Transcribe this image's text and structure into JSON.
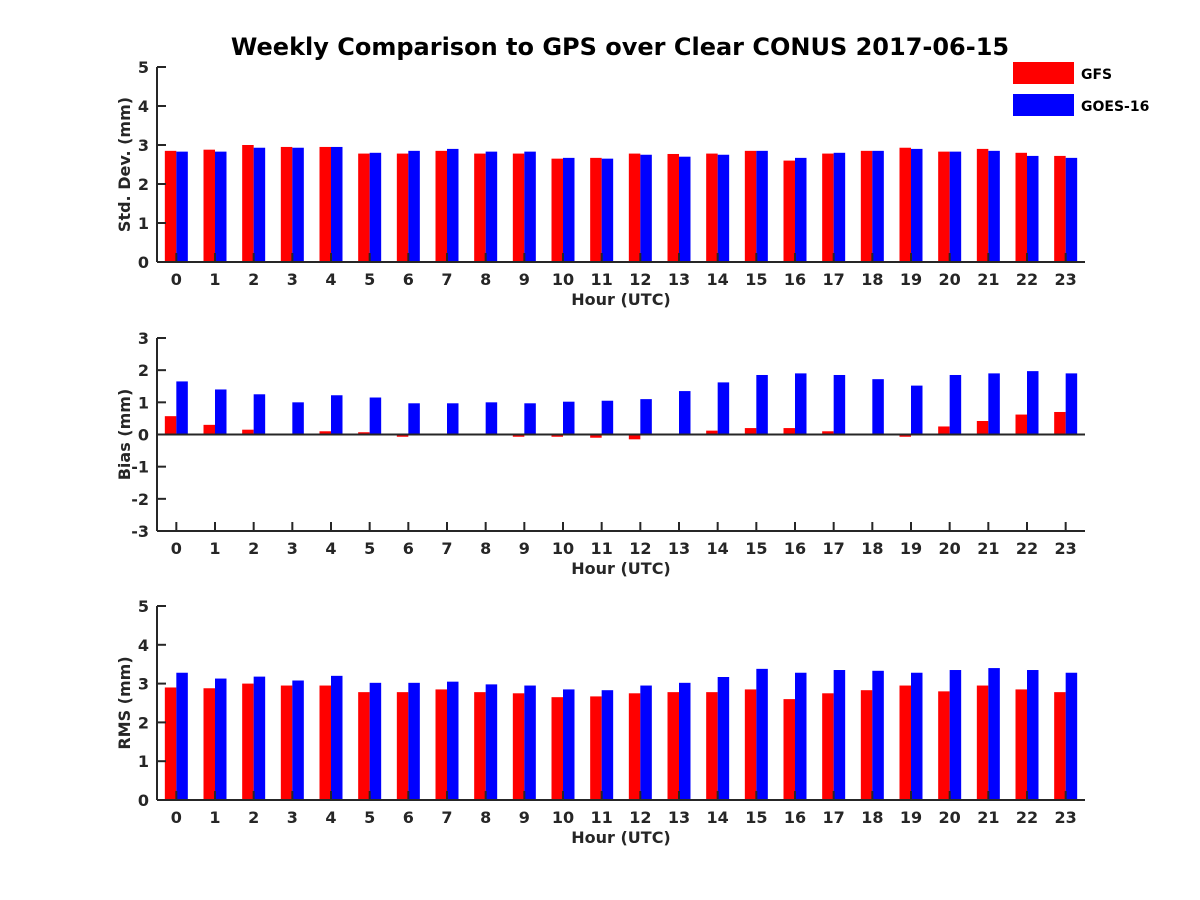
{
  "figure": {
    "title": "Weekly Comparison to GPS over Clear CONUS 2017-06-15"
  },
  "colors": {
    "GFS": "#ff0000",
    "GOES-16": "#0000ff",
    "axis": "#262626"
  },
  "legend": {
    "placement": "top-right",
    "entries": [
      "GFS",
      "GOES-16"
    ]
  },
  "chart_data": [
    {
      "type": "bar",
      "xlabel": "Hour (UTC)",
      "ylabel": "Std. Dev. (mm)",
      "ylim": [
        0,
        5
      ],
      "yticks": [
        0,
        1,
        2,
        3,
        4,
        5
      ],
      "categories": [
        "0",
        "1",
        "2",
        "3",
        "4",
        "5",
        "6",
        "7",
        "8",
        "9",
        "10",
        "11",
        "12",
        "13",
        "14",
        "15",
        "16",
        "17",
        "18",
        "19",
        "20",
        "21",
        "22",
        "23"
      ],
      "series": [
        {
          "name": "GFS",
          "values": [
            2.85,
            2.88,
            3.0,
            2.95,
            2.95,
            2.78,
            2.78,
            2.85,
            2.78,
            2.78,
            2.65,
            2.67,
            2.78,
            2.77,
            2.78,
            2.85,
            2.6,
            2.78,
            2.85,
            2.93,
            2.83,
            2.9,
            2.8,
            2.72
          ]
        },
        {
          "name": "GOES-16",
          "values": [
            2.83,
            2.83,
            2.93,
            2.93,
            2.95,
            2.8,
            2.85,
            2.9,
            2.83,
            2.83,
            2.67,
            2.65,
            2.75,
            2.7,
            2.75,
            2.85,
            2.67,
            2.8,
            2.85,
            2.9,
            2.83,
            2.85,
            2.72,
            2.67
          ]
        }
      ]
    },
    {
      "type": "bar",
      "xlabel": "Hour (UTC)",
      "ylabel": "Bias (mm)",
      "ylim": [
        -3,
        3
      ],
      "yticks": [
        -3,
        -2,
        -1,
        0,
        1,
        2,
        3
      ],
      "categories": [
        "0",
        "1",
        "2",
        "3",
        "4",
        "5",
        "6",
        "7",
        "8",
        "9",
        "10",
        "11",
        "12",
        "13",
        "14",
        "15",
        "16",
        "17",
        "18",
        "19",
        "20",
        "21",
        "22",
        "23"
      ],
      "series": [
        {
          "name": "GFS",
          "values": [
            0.57,
            0.3,
            0.15,
            0.0,
            0.1,
            0.07,
            -0.07,
            0.0,
            0.02,
            -0.07,
            -0.07,
            -0.1,
            -0.15,
            -0.03,
            0.12,
            0.2,
            0.2,
            0.1,
            0.0,
            -0.07,
            0.25,
            0.42,
            0.62,
            0.7
          ]
        },
        {
          "name": "GOES-16",
          "values": [
            1.65,
            1.4,
            1.25,
            1.0,
            1.22,
            1.15,
            0.97,
            0.97,
            1.0,
            0.97,
            1.02,
            1.05,
            1.1,
            1.35,
            1.62,
            1.85,
            1.9,
            1.85,
            1.72,
            1.52,
            1.85,
            1.9,
            1.97,
            1.9
          ]
        }
      ]
    },
    {
      "type": "bar",
      "xlabel": "Hour (UTC)",
      "ylabel": "RMS (mm)",
      "ylim": [
        0,
        5
      ],
      "yticks": [
        0,
        1,
        2,
        3,
        4,
        5
      ],
      "categories": [
        "0",
        "1",
        "2",
        "3",
        "4",
        "5",
        "6",
        "7",
        "8",
        "9",
        "10",
        "11",
        "12",
        "13",
        "14",
        "15",
        "16",
        "17",
        "18",
        "19",
        "20",
        "21",
        "22",
        "23"
      ],
      "series": [
        {
          "name": "GFS",
          "values": [
            2.9,
            2.88,
            3.0,
            2.95,
            2.95,
            2.78,
            2.78,
            2.85,
            2.78,
            2.75,
            2.65,
            2.67,
            2.75,
            2.78,
            2.78,
            2.85,
            2.6,
            2.75,
            2.83,
            2.95,
            2.8,
            2.95,
            2.85,
            2.78
          ]
        },
        {
          "name": "GOES-16",
          "values": [
            3.28,
            3.13,
            3.18,
            3.08,
            3.2,
            3.02,
            3.02,
            3.05,
            2.98,
            2.95,
            2.85,
            2.83,
            2.95,
            3.02,
            3.17,
            3.38,
            3.28,
            3.35,
            3.33,
            3.28,
            3.35,
            3.4,
            3.35,
            3.28
          ]
        }
      ]
    }
  ]
}
